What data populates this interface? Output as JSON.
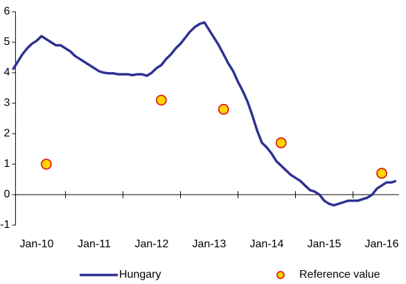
{
  "chart_data": {
    "type": "line",
    "xticks": [
      {
        "value": "2010-01",
        "label": "Jan-10"
      },
      {
        "value": "2011-01",
        "label": "Jan-11"
      },
      {
        "value": "2012-01",
        "label": "Jan-12"
      },
      {
        "value": "2013-01",
        "label": "Jan-13"
      },
      {
        "value": "2014-01",
        "label": "Jan-14"
      },
      {
        "value": "2015-01",
        "label": "Jan-15"
      },
      {
        "value": "2016-01",
        "label": "Jan-16"
      }
    ],
    "xlim": [
      "2009-08",
      "2016-04"
    ],
    "ylim": [
      -1,
      6
    ],
    "yticks": [
      -1,
      0,
      1,
      2,
      3,
      4,
      5,
      6
    ],
    "legend": "bottom",
    "series": [
      {
        "name": "Hungary",
        "type": "line",
        "color": "#2e3192",
        "x": [
          "2009-08",
          "2009-09",
          "2009-10",
          "2009-11",
          "2009-12",
          "2010-01",
          "2010-02",
          "2010-03",
          "2010-04",
          "2010-05",
          "2010-06",
          "2010-07",
          "2010-08",
          "2010-09",
          "2010-10",
          "2010-11",
          "2010-12",
          "2011-01",
          "2011-02",
          "2011-03",
          "2011-04",
          "2011-05",
          "2011-06",
          "2011-07",
          "2011-08",
          "2011-09",
          "2011-10",
          "2011-11",
          "2011-12",
          "2012-01",
          "2012-02",
          "2012-03",
          "2012-04",
          "2012-05",
          "2012-06",
          "2012-07",
          "2012-08",
          "2012-09",
          "2012-10",
          "2012-11",
          "2012-12",
          "2013-01",
          "2013-02",
          "2013-03",
          "2013-04",
          "2013-05",
          "2013-06",
          "2013-07",
          "2013-08",
          "2013-09",
          "2013-10",
          "2013-11",
          "2013-12",
          "2014-01",
          "2014-02",
          "2014-03",
          "2014-04",
          "2014-05",
          "2014-06",
          "2014-07",
          "2014-08",
          "2014-09",
          "2014-10",
          "2014-11",
          "2014-12",
          "2015-01",
          "2015-02",
          "2015-03",
          "2015-04",
          "2015-05",
          "2015-06",
          "2015-07",
          "2015-08",
          "2015-09",
          "2015-10",
          "2015-11",
          "2015-12",
          "2016-01",
          "2016-02",
          "2016-03",
          "2016-04"
        ],
        "values": [
          4.1,
          4.35,
          4.6,
          4.8,
          4.95,
          5.05,
          5.2,
          5.1,
          5.0,
          4.9,
          4.9,
          4.8,
          4.7,
          4.55,
          4.45,
          4.35,
          4.25,
          4.15,
          4.05,
          4.0,
          3.98,
          3.98,
          3.95,
          3.95,
          3.95,
          3.92,
          3.95,
          3.95,
          3.9,
          4.0,
          4.15,
          4.25,
          4.45,
          4.6,
          4.8,
          4.95,
          5.15,
          5.35,
          5.5,
          5.6,
          5.65,
          5.4,
          5.15,
          4.9,
          4.6,
          4.3,
          4.05,
          3.7,
          3.4,
          3.05,
          2.6,
          2.1,
          1.7,
          1.55,
          1.35,
          1.1,
          0.95,
          0.8,
          0.65,
          0.55,
          0.45,
          0.3,
          0.15,
          0.1,
          0.0,
          -0.2,
          -0.3,
          -0.35,
          -0.3,
          -0.25,
          -0.2,
          -0.2,
          -0.2,
          -0.15,
          -0.1,
          0.0,
          0.2,
          0.3,
          0.4,
          0.4,
          0.45
        ]
      },
      {
        "name": "Reference value",
        "type": "scatter",
        "color": "#ffd700",
        "edgecolor": "#e31b1b",
        "x": [
          "2010-03",
          "2012-03",
          "2013-04",
          "2014-04",
          "2016-01"
        ],
        "values": [
          1.0,
          3.1,
          2.8,
          1.7,
          0.7
        ]
      }
    ]
  }
}
